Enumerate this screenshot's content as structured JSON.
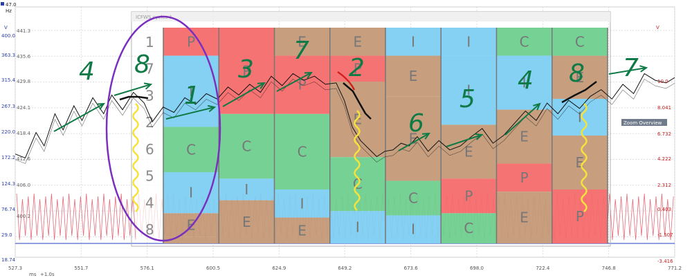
{
  "title": "",
  "colors": {
    "P": "#f56c6c",
    "C": "#6fcf8f",
    "E": "#c49a78",
    "I": "#7ecff2",
    "candle": "#e05060",
    "price": "#111111",
    "blue_trace": "#1f3fbf",
    "purple_circle": "#7a2fbf",
    "green_ink": "#0f7a45",
    "yellow_ink": "#f5e23b",
    "red_ink": "#d42020",
    "axis_left": "#2c3fa8",
    "axis_right": "#c02020"
  },
  "top_left": {
    "value": "47.0",
    "unit": "Hz"
  },
  "window_title": "ICFWS cycles 1",
  "left_axis": {
    "unit": "V",
    "ticks_outer": [
      "400.0",
      "363.3",
      "315.4",
      "267.3",
      "220.0",
      "172.2",
      "124.3",
      "76.74",
      "29.0",
      "18.74"
    ],
    "ticks_inner": [
      "441.3",
      "435.6",
      "429.8",
      "424.1",
      "418.4",
      "412.6",
      "406.0",
      "400.2"
    ]
  },
  "right_axis": {
    "unit": "V",
    "ticks": [
      "10.0",
      "8.041",
      "6.732",
      "4.222",
      "2.312",
      "0.403",
      "-1.507",
      "-3.416"
    ]
  },
  "x_axis": {
    "ticks": [
      "527.3",
      "551.7",
      "576.1",
      "600.5",
      "624.9",
      "649.2",
      "673.6",
      "698.0",
      "722.4",
      "746.8",
      "771.2"
    ],
    "status": [
      "ms",
      "+1.0s"
    ]
  },
  "zoom_overview_label": "Zoom Overview",
  "left_panel_numbers": [
    "1",
    "7",
    "3",
    "2",
    "6",
    "5",
    "4",
    "8"
  ],
  "chart_data": {
    "type": "stacked cycle grid",
    "columns": [
      {
        "cells": [
          "P",
          "I",
          "C",
          "I",
          "E",
          "E"
        ],
        "fractions": [
          0.13,
          0.33,
          0.21,
          0.19,
          0.11,
          0.03
        ]
      },
      {
        "cells": [
          "P",
          "P",
          "C",
          "I",
          "E"
        ],
        "fractions": [
          0.0,
          0.4,
          0.3,
          0.1,
          0.2
        ]
      },
      {
        "cells": [
          "E",
          "P",
          "C",
          "I",
          "E"
        ],
        "fractions": [
          0.13,
          0.27,
          0.35,
          0.13,
          0.12
        ]
      },
      {
        "cells": [
          "E",
          "P",
          "E",
          "C",
          "I"
        ],
        "fractions": [
          0.13,
          0.12,
          0.35,
          0.25,
          0.15
        ]
      },
      {
        "cells": [
          "I",
          "E",
          "E",
          "C",
          "I"
        ],
        "fractions": [
          0.13,
          0.19,
          0.39,
          0.16,
          0.13
        ]
      },
      {
        "cells": [
          "I",
          "I",
          "E",
          "P",
          "C"
        ],
        "fractions": [
          0.13,
          0.32,
          0.25,
          0.16,
          0.14
        ]
      },
      {
        "cells": [
          "C",
          "I",
          "E",
          "P",
          "E"
        ],
        "fractions": [
          0.13,
          0.25,
          0.25,
          0.13,
          0.24
        ]
      },
      {
        "cells": [
          "C",
          "E",
          "I",
          "E",
          "P"
        ],
        "fractions": [
          0.13,
          0.2,
          0.17,
          0.25,
          0.25
        ]
      }
    ],
    "price_series_right_axis": [
      [
        527.3,
        4.6
      ],
      [
        531,
        4.3
      ],
      [
        535,
        6.2
      ],
      [
        538,
        5.2
      ],
      [
        542,
        7.6
      ],
      [
        545,
        6.4
      ],
      [
        549,
        8.2
      ],
      [
        552,
        7.1
      ],
      [
        556,
        8.8
      ],
      [
        560,
        7.6
      ],
      [
        563,
        9.0
      ],
      [
        567,
        7.9
      ],
      [
        571,
        9.2
      ],
      [
        575,
        8.4
      ],
      [
        578,
        7.0
      ],
      [
        582,
        8.1
      ],
      [
        586,
        7.7
      ],
      [
        590,
        8.8
      ],
      [
        594,
        8.3
      ],
      [
        598,
        9.1
      ],
      [
        602,
        8.7
      ],
      [
        606,
        9.6
      ],
      [
        610,
        9.0
      ],
      [
        614,
        9.8
      ],
      [
        618,
        9.2
      ],
      [
        622,
        10.4
      ],
      [
        626,
        9.7
      ],
      [
        630,
        10.6
      ],
      [
        634,
        10.1
      ],
      [
        638,
        10.4
      ],
      [
        642,
        9.8
      ],
      [
        646,
        9.9
      ],
      [
        649,
        8.6
      ],
      [
        652,
        6.6
      ],
      [
        655,
        5.6
      ],
      [
        658,
        5.0
      ],
      [
        661,
        4.4
      ],
      [
        664,
        4.8
      ],
      [
        667,
        4.9
      ],
      [
        670,
        5.4
      ],
      [
        673,
        5.2
      ],
      [
        676,
        5.9
      ],
      [
        680,
        4.8
      ],
      [
        684,
        5.6
      ],
      [
        688,
        4.9
      ],
      [
        692,
        5.2
      ],
      [
        696,
        5.9
      ],
      [
        700,
        6.5
      ],
      [
        704,
        5.4
      ],
      [
        708,
        6.0
      ],
      [
        712,
        6.9
      ],
      [
        716,
        7.8
      ],
      [
        720,
        7.1
      ],
      [
        724,
        8.4
      ],
      [
        728,
        7.6
      ],
      [
        732,
        8.6
      ],
      [
        736,
        8.0
      ],
      [
        740,
        8.9
      ],
      [
        744,
        9.4
      ],
      [
        748,
        8.7
      ],
      [
        752,
        9.8
      ],
      [
        756,
        9.1
      ],
      [
        760,
        10.6
      ],
      [
        764,
        10.1
      ],
      [
        768,
        9.9
      ],
      [
        771.2,
        10.3
      ]
    ],
    "overlay_labels": [
      "4",
      "8",
      "1",
      "3",
      "7",
      "2",
      "6",
      "5",
      "4",
      "8",
      "7"
    ]
  }
}
